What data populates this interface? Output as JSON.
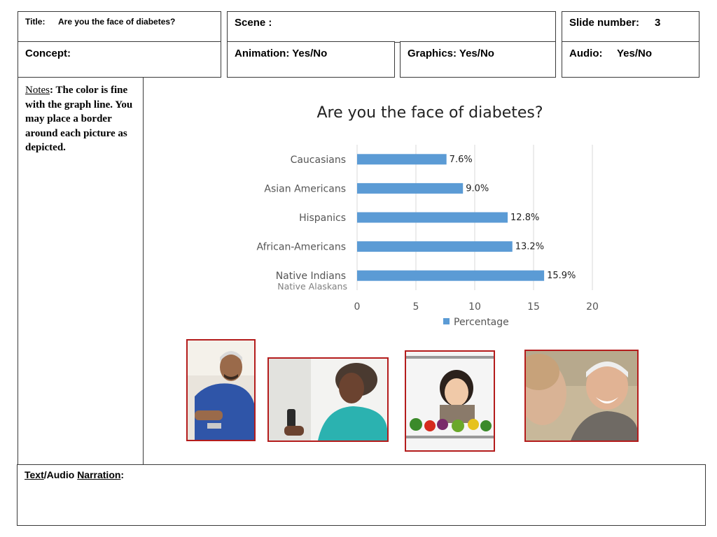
{
  "header": {
    "title_label": "Title:",
    "title_value": "Are you the face of diabetes?",
    "scene_label": "Scene :",
    "slide_label": "Slide number:",
    "slide_number": "3",
    "concept_label": "Concept:",
    "animation_label": "Animation: Yes/No",
    "graphics_label": "Graphics: Yes/No",
    "audio_label": "Audio:",
    "audio_value": "Yes/No"
  },
  "notes": {
    "label": "Notes",
    "text": ": The color is fine with the graph line.  You may place a border around each picture as depicted."
  },
  "narration": {
    "label_a": "Text",
    "label_b": "/Audio ",
    "label_c": "Narration",
    "label_d": ":"
  },
  "colors": {
    "bar": "#5b9bd5",
    "photo_border": "#b41c1c",
    "sub_label": "#7f7f7f"
  },
  "photos": [
    {
      "icon": "man-checking-blood-sugar"
    },
    {
      "icon": "woman-using-glucose-meter"
    },
    {
      "icon": "woman-with-vegetables"
    },
    {
      "icon": "smiling-elderly-man"
    }
  ],
  "chart_data": {
    "type": "bar",
    "orientation": "horizontal",
    "title": "Are you the face of diabetes?",
    "categories": [
      "Caucasians",
      "Asian Americans",
      "Hispanics",
      "African-Americans",
      "Native Indians"
    ],
    "category_sublabels": [
      "",
      "",
      "",
      "",
      "Native Alaskans"
    ],
    "series": [
      {
        "name": "Percentage",
        "values": [
          7.6,
          9.0,
          12.8,
          13.2,
          15.9
        ]
      }
    ],
    "data_labels": [
      "7.6%",
      "9.0%",
      "12.8%",
      "13.2%",
      "15.9%"
    ],
    "xlim": [
      0,
      20
    ],
    "xticks": [
      "0",
      "5",
      "10",
      "15",
      "20"
    ],
    "xlabel": "",
    "ylabel": "",
    "grid": true,
    "legend": "bottom"
  }
}
